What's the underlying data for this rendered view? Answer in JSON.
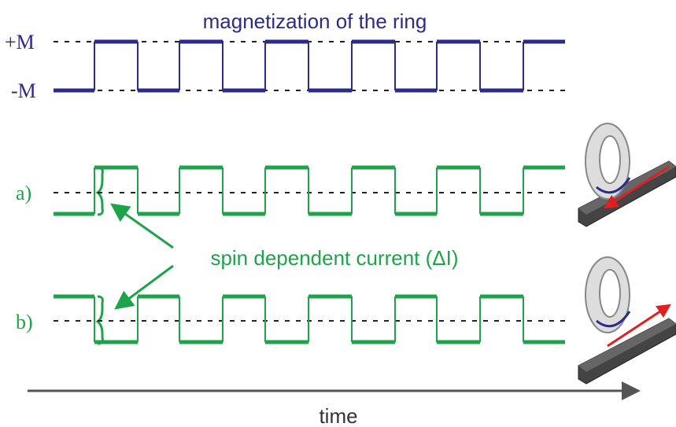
{
  "title": "magnetization of the ring",
  "levels": {
    "plus": "+M",
    "minus": "-M"
  },
  "traces": {
    "a": "a)",
    "b": "b)"
  },
  "annotation": "spin dependent current (ΔI)",
  "axis": "time"
}
